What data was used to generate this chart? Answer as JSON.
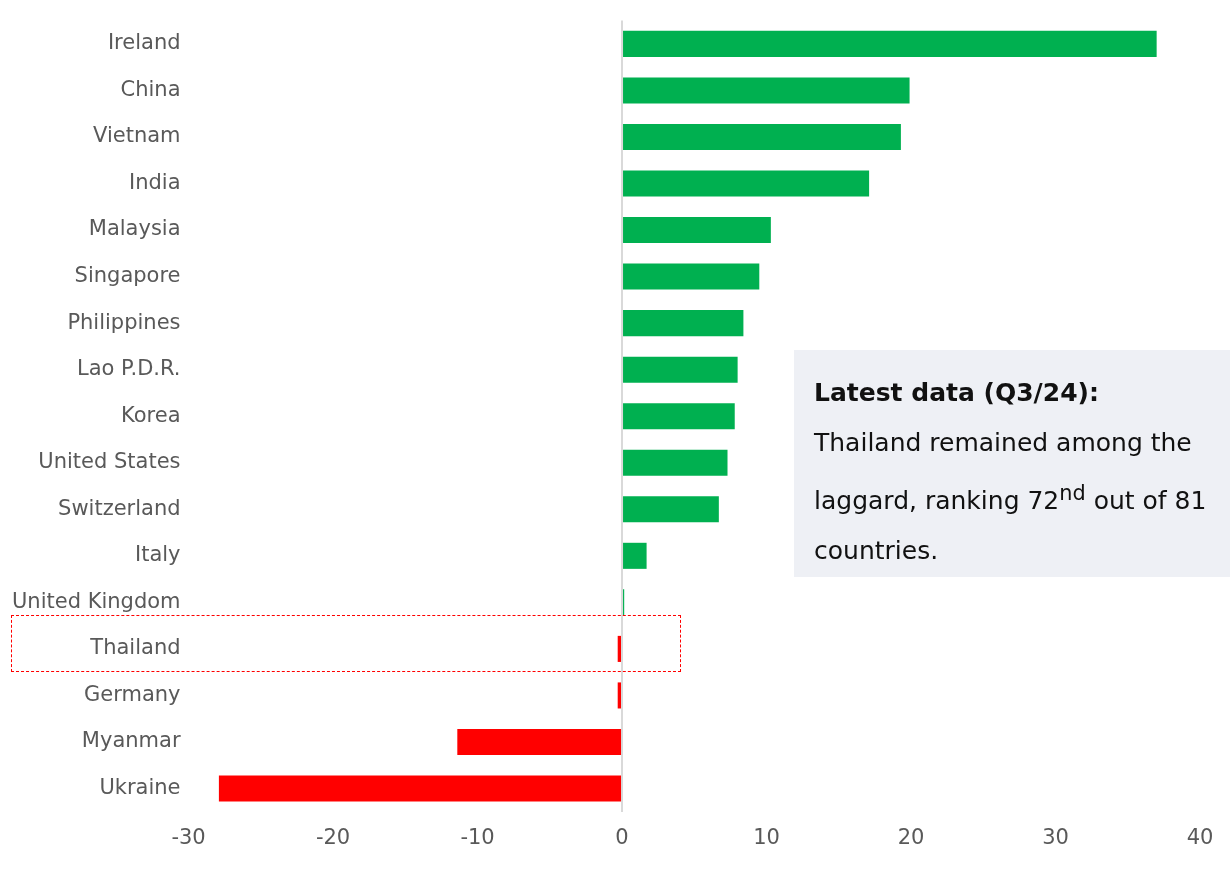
{
  "chart_data": {
    "type": "bar",
    "orientation": "horizontal",
    "categories": [
      "Ireland",
      "China",
      "Vietnam",
      "India",
      "Malaysia",
      "Singapore",
      "Philippines",
      "Lao P.D.R.",
      "Korea",
      "United States",
      "Switzerland",
      "Italy",
      "United Kingdom",
      "Thailand",
      "Germany",
      "Myanmar",
      "Ukraine"
    ],
    "values": [
      37.0,
      19.9,
      19.3,
      17.1,
      10.3,
      9.5,
      8.4,
      8.0,
      7.8,
      7.3,
      6.7,
      1.7,
      0.15,
      -0.3,
      -0.3,
      -11.4,
      -27.9
    ],
    "colors": [
      "#00b050",
      "#00b050",
      "#00b050",
      "#00b050",
      "#00b050",
      "#00b050",
      "#00b050",
      "#00b050",
      "#00b050",
      "#00b050",
      "#00b050",
      "#00b050",
      "#00b050",
      "#ff0000",
      "#ff0000",
      "#ff0000",
      "#ff0000"
    ],
    "xlim": [
      -30,
      40
    ],
    "xticks": [
      -30,
      -20,
      -10,
      0,
      10,
      20,
      30,
      40
    ],
    "annotations": [
      "**Latest data (Q3/24):**",
      "Thailand remained among the laggard, ranking 72$^{nd}$ out of 81 countries."
    ]
  }
}
